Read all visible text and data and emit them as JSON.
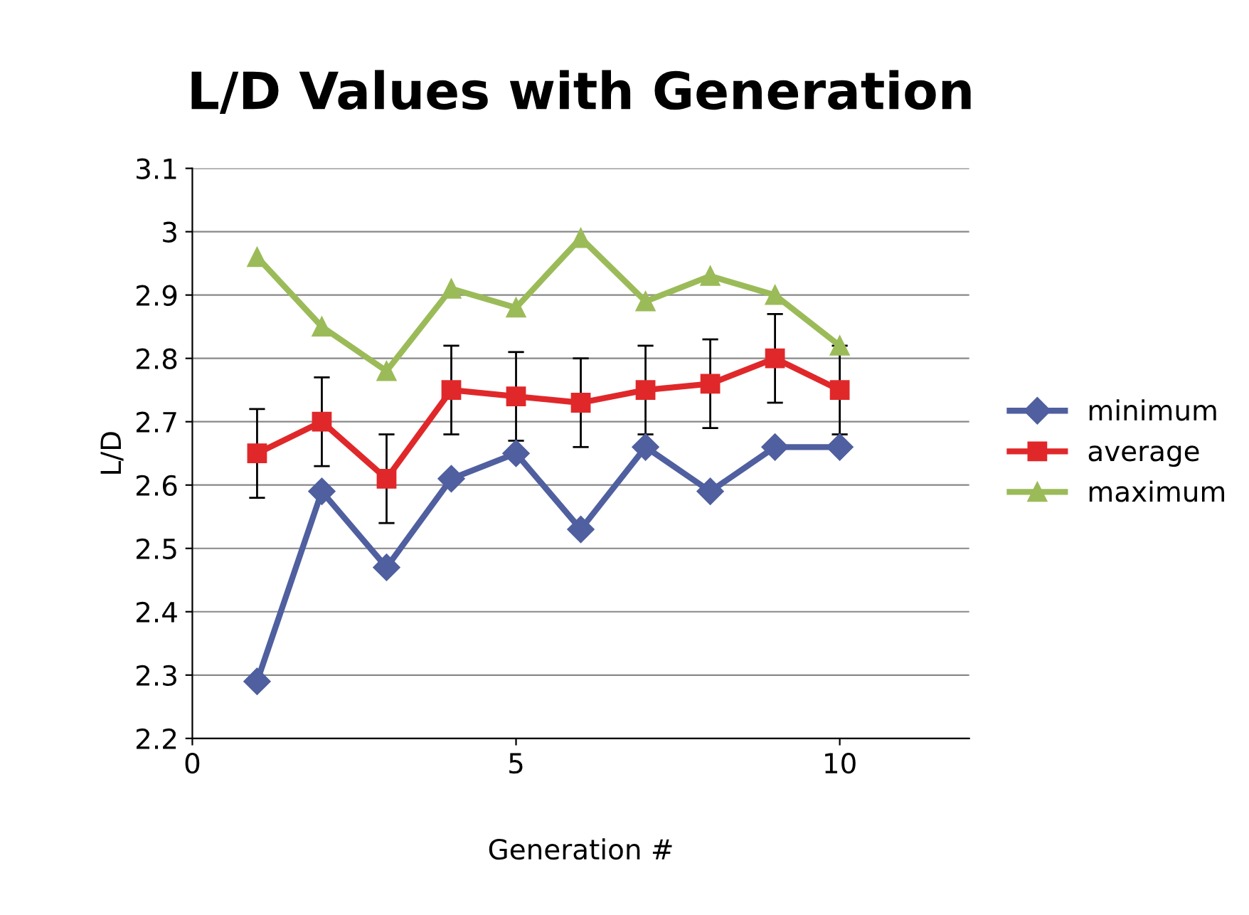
{
  "chart_data": {
    "type": "line",
    "title": "L/D Values with Generation",
    "xlabel": "Generation #",
    "ylabel": "L/D",
    "x": [
      1,
      2,
      3,
      4,
      5,
      6,
      7,
      8,
      9,
      10
    ],
    "series": [
      {
        "name": "minimum",
        "color": "#4f5f9f",
        "marker": "diamond",
        "values": [
          2.29,
          2.59,
          2.47,
          2.61,
          2.65,
          2.53,
          2.66,
          2.59,
          2.66,
          2.66
        ]
      },
      {
        "name": "average",
        "color": "#e0282a",
        "marker": "square",
        "values": [
          2.65,
          2.7,
          2.61,
          2.75,
          2.74,
          2.73,
          2.75,
          2.76,
          2.8,
          2.75
        ],
        "errors": [
          0.07,
          0.07,
          0.07,
          0.07,
          0.07,
          0.07,
          0.07,
          0.07,
          0.07,
          0.07
        ]
      },
      {
        "name": "maximum",
        "color": "#9bbb59",
        "marker": "triangle",
        "values": [
          2.96,
          2.85,
          2.78,
          2.91,
          2.88,
          2.99,
          2.89,
          2.93,
          2.9,
          2.82
        ]
      }
    ],
    "xlim": [
      0,
      12
    ],
    "xticks": [
      0,
      5,
      10
    ],
    "ylim": [
      2.2,
      3.1
    ],
    "yticks": [
      2.2,
      2.3,
      2.4,
      2.5,
      2.6,
      2.7,
      2.8,
      2.9,
      3,
      3.1
    ],
    "grid": "y",
    "legend": "right"
  }
}
